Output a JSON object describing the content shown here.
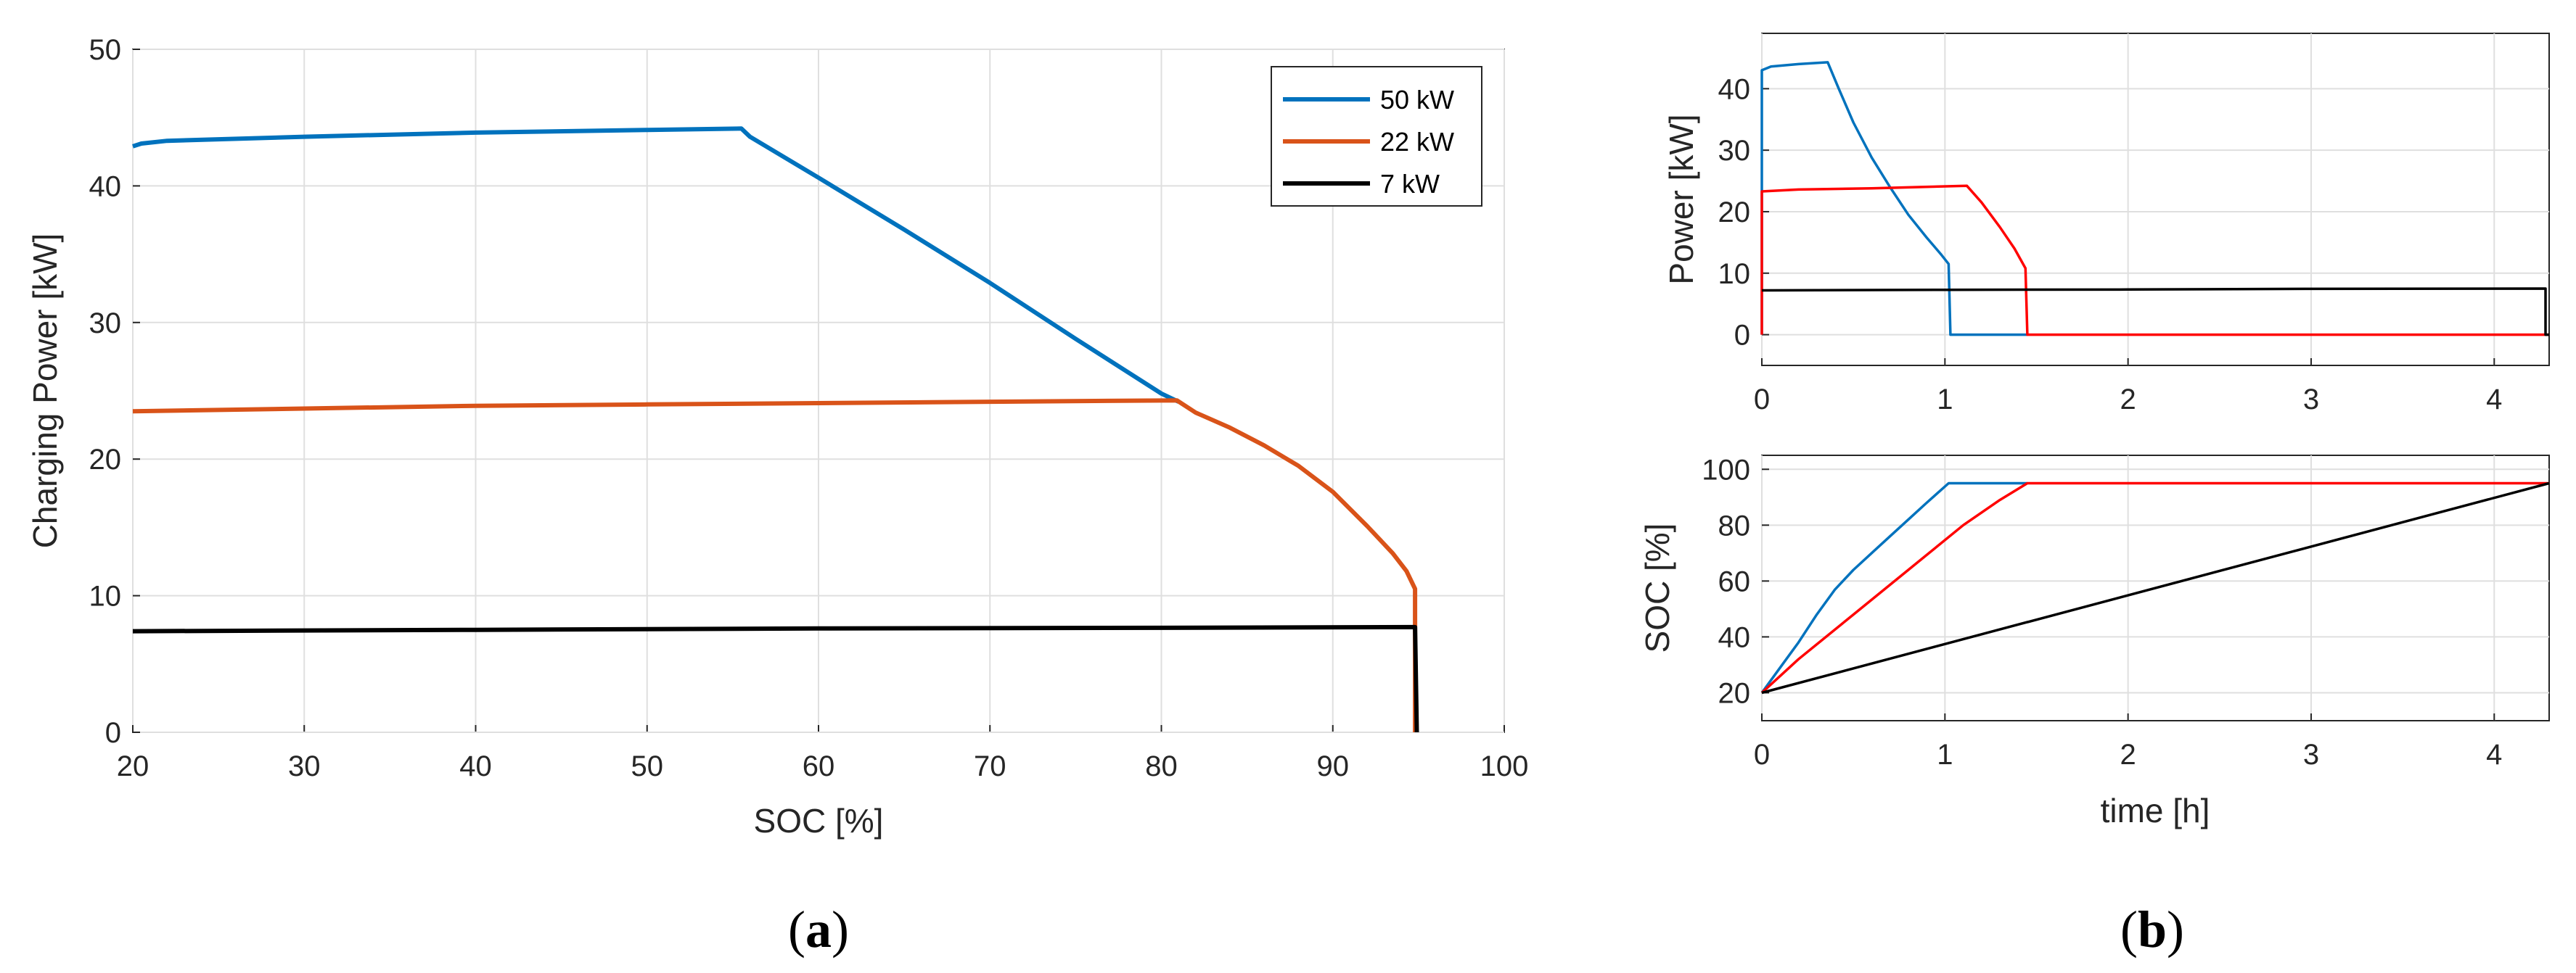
{
  "chart_data": [
    {
      "id": "a",
      "type": "line",
      "caption": "a",
      "xlabel": "SOC [%]",
      "ylabel": "Charging Power [kW]",
      "xlim": [
        20,
        100
      ],
      "ylim": [
        0,
        50
      ],
      "xticks": [
        20,
        30,
        40,
        50,
        60,
        70,
        80,
        90,
        100
      ],
      "yticks": [
        0,
        10,
        20,
        30,
        40,
        50
      ],
      "grid": true,
      "legend_position": "top-right",
      "series": [
        {
          "name": "50 kW",
          "color": "#0072BD",
          "points": [
            [
              20,
              42.9
            ],
            [
              20.5,
              43.1
            ],
            [
              22,
              43.3
            ],
            [
              30,
              43.6
            ],
            [
              40,
              43.9
            ],
            [
              50,
              44.1
            ],
            [
              55.5,
              44.2
            ],
            [
              56,
              43.6
            ],
            [
              60,
              40.6
            ],
            [
              65,
              36.8
            ],
            [
              70,
              32.9
            ],
            [
              75,
              28.8
            ],
            [
              80,
              24.8
            ],
            [
              81,
              24.2
            ]
          ]
        },
        {
          "name": "22 kW",
          "color": "#D95319",
          "points": [
            [
              20,
              23.5
            ],
            [
              30,
              23.7
            ],
            [
              40,
              23.9
            ],
            [
              50,
              24.0
            ],
            [
              60,
              24.1
            ],
            [
              70,
              24.2
            ],
            [
              80.9,
              24.3
            ],
            [
              82,
              23.4
            ],
            [
              84,
              22.3
            ],
            [
              86,
              21.0
            ],
            [
              88,
              19.5
            ],
            [
              90,
              17.6
            ],
            [
              92,
              15.1
            ],
            [
              93.5,
              13.1
            ],
            [
              94.3,
              11.8
            ],
            [
              94.8,
              10.5
            ],
            [
              94.8,
              0
            ]
          ]
        },
        {
          "name": "7 kW",
          "color": "#000000",
          "points": [
            [
              20,
              7.4
            ],
            [
              40,
              7.5
            ],
            [
              60,
              7.6
            ],
            [
              80,
              7.65
            ],
            [
              94.8,
              7.7
            ],
            [
              94.9,
              0
            ]
          ]
        }
      ]
    },
    {
      "id": "b-top",
      "type": "line",
      "caption": "b",
      "xlabel": "",
      "ylabel": "Power [kW]",
      "xlim": [
        0,
        4.3
      ],
      "ylim": [
        -5,
        49
      ],
      "xticks": [
        0,
        1,
        2,
        3,
        4
      ],
      "yticks": [
        0,
        10,
        20,
        30,
        40
      ],
      "grid": true,
      "series": [
        {
          "name": "50 kW",
          "color": "#0072BD",
          "points": [
            [
              0,
              0
            ],
            [
              0,
              43
            ],
            [
              0.05,
              43.6
            ],
            [
              0.2,
              44.0
            ],
            [
              0.36,
              44.3
            ],
            [
              0.42,
              40.0
            ],
            [
              0.5,
              34.5
            ],
            [
              0.6,
              28.8
            ],
            [
              0.7,
              24.0
            ],
            [
              0.8,
              19.5
            ],
            [
              0.9,
              15.8
            ],
            [
              0.98,
              13.0
            ],
            [
              1.02,
              11.5
            ],
            [
              1.03,
              0
            ],
            [
              1.45,
              0
            ]
          ]
        },
        {
          "name": "22 kW",
          "color": "#FF0000",
          "points": [
            [
              0,
              0
            ],
            [
              0,
              23.3
            ],
            [
              0.2,
              23.6
            ],
            [
              0.6,
              23.8
            ],
            [
              1.12,
              24.2
            ],
            [
              1.2,
              21.5
            ],
            [
              1.3,
              17.5
            ],
            [
              1.38,
              14.0
            ],
            [
              1.44,
              10.8
            ],
            [
              1.45,
              0
            ],
            [
              4.3,
              0
            ]
          ]
        },
        {
          "name": "7 kW",
          "color": "#000000",
          "points": [
            [
              0,
              7.2
            ],
            [
              1,
              7.3
            ],
            [
              2,
              7.35
            ],
            [
              3,
              7.45
            ],
            [
              4.28,
              7.5
            ],
            [
              4.28,
              0
            ],
            [
              4.3,
              0
            ]
          ]
        }
      ]
    },
    {
      "id": "b-bottom",
      "type": "line",
      "xlabel": "time [h]",
      "ylabel": "SOC [%]",
      "xlim": [
        0,
        4.3
      ],
      "ylim": [
        10,
        105
      ],
      "xticks": [
        0,
        1,
        2,
        3,
        4
      ],
      "yticks": [
        20,
        40,
        60,
        80,
        100
      ],
      "grid": true,
      "series": [
        {
          "name": "50 kW",
          "color": "#0072BD",
          "points": [
            [
              0,
              20
            ],
            [
              0.1,
              29
            ],
            [
              0.2,
              38
            ],
            [
              0.3,
              48
            ],
            [
              0.4,
              57
            ],
            [
              0.5,
              64
            ],
            [
              0.6,
              70
            ],
            [
              0.7,
              76
            ],
            [
              0.8,
              82
            ],
            [
              0.9,
              88
            ],
            [
              1.02,
              95
            ],
            [
              1.45,
              95
            ]
          ]
        },
        {
          "name": "22 kW",
          "color": "#FF0000",
          "points": [
            [
              0,
              20
            ],
            [
              0.2,
              32
            ],
            [
              0.5,
              48
            ],
            [
              0.8,
              64
            ],
            [
              1.1,
              80
            ],
            [
              1.3,
              89
            ],
            [
              1.45,
              95
            ],
            [
              4.3,
              95
            ]
          ]
        },
        {
          "name": "7 kW",
          "color": "#000000",
          "points": [
            [
              0,
              20
            ],
            [
              4.3,
              95
            ]
          ]
        }
      ]
    }
  ],
  "captions": {
    "a": "a",
    "b": "b"
  }
}
